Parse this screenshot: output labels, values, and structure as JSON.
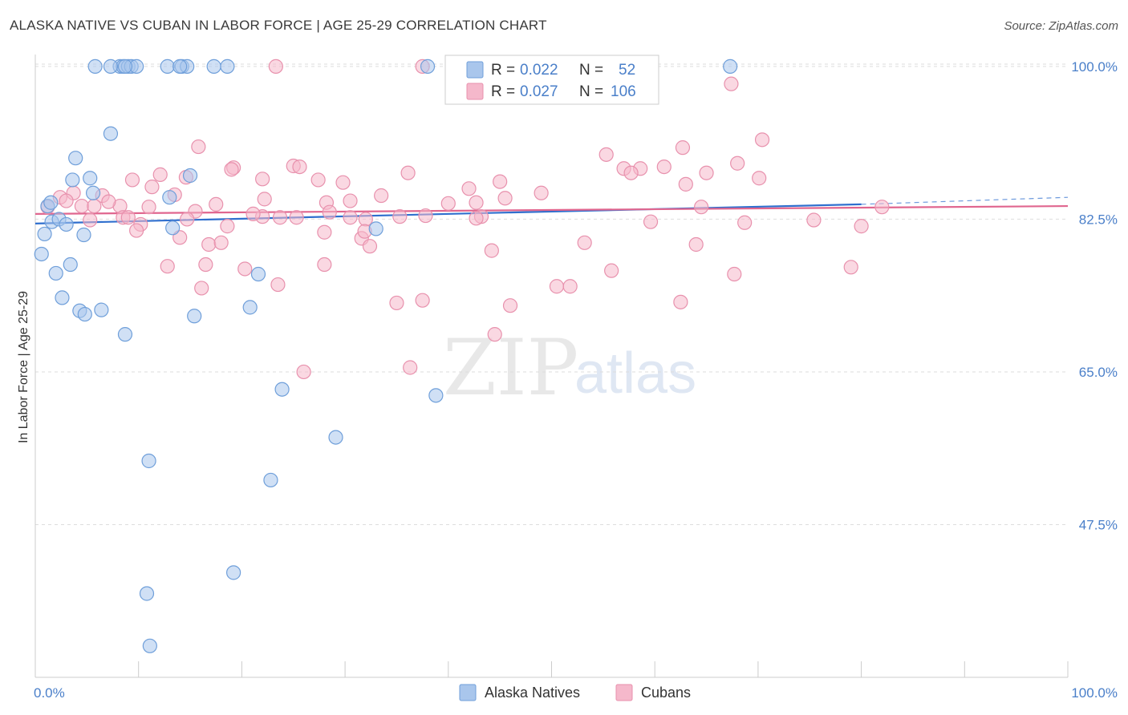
{
  "title": "ALASKA NATIVE VS CUBAN IN LABOR FORCE | AGE 25-29 CORRELATION CHART",
  "source": "Source: ZipAtlas.com",
  "watermark": {
    "zip": "ZIP",
    "atlas": "atlas"
  },
  "colors": {
    "blue_fill": "#a9c6ec",
    "blue_stroke": "#6f9fda",
    "blue_line": "#2f6fce",
    "pink_fill": "#f5b8cb",
    "pink_stroke": "#e891ad",
    "pink_line": "#e0668f",
    "grid": "#dddddd",
    "tick_text": "#4a7fc9"
  },
  "chart_data": {
    "type": "scatter",
    "title": "ALASKA NATIVE VS CUBAN IN LABOR FORCE | AGE 25-29 CORRELATION CHART",
    "xlabel": "",
    "ylabel": "In Labor Force | Age 25-29",
    "xlim": [
      0,
      100
    ],
    "ylim": [
      30,
      101
    ],
    "x_tick_labels": [
      "0.0%",
      "100.0%"
    ],
    "y_ticks": [
      47.5,
      65.0,
      82.5,
      100.0
    ],
    "y_tick_labels": [
      "47.5%",
      "65.0%",
      "82.5%",
      "100.0%"
    ],
    "legend": [
      {
        "r_label": "R =",
        "r_value": "0.022",
        "n_label": "N =",
        "n_value": "52"
      },
      {
        "r_label": "R =",
        "r_value": "0.027",
        "n_label": "N =",
        "n_value": "106"
      }
    ],
    "series": [
      {
        "name": "Alaska Natives",
        "trend": {
          "x0": 0,
          "y0": 82.0,
          "x1": 80,
          "y1": 84.2,
          "dash_x1": 100,
          "dash_y1": 85.0
        },
        "points": [
          [
            5.8,
            100
          ],
          [
            8.2,
            100
          ],
          [
            8.5,
            100
          ],
          [
            9.0,
            100
          ],
          [
            9.3,
            100
          ],
          [
            7.3,
            100
          ],
          [
            9.8,
            100
          ],
          [
            12.8,
            100
          ],
          [
            14.2,
            100
          ],
          [
            14.7,
            100
          ],
          [
            17.3,
            100
          ],
          [
            18.6,
            100
          ],
          [
            8.7,
            100
          ],
          [
            14.0,
            100
          ],
          [
            38.0,
            100
          ],
          [
            67.3,
            100
          ],
          [
            7.3,
            92.3
          ],
          [
            3.9,
            89.5
          ],
          [
            3.6,
            87.0
          ],
          [
            5.3,
            87.2
          ],
          [
            15.0,
            87.5
          ],
          [
            5.6,
            85.5
          ],
          [
            13.0,
            85.0
          ],
          [
            1.2,
            84.0
          ],
          [
            1.6,
            82.2
          ],
          [
            2.3,
            82.5
          ],
          [
            3.0,
            81.9
          ],
          [
            0.9,
            80.8
          ],
          [
            4.7,
            80.7
          ],
          [
            13.3,
            81.5
          ],
          [
            33.0,
            81.4
          ],
          [
            0.6,
            78.5
          ],
          [
            3.4,
            77.3
          ],
          [
            2.0,
            76.3
          ],
          [
            21.6,
            76.2
          ],
          [
            2.6,
            73.5
          ],
          [
            4.3,
            72.0
          ],
          [
            6.4,
            72.1
          ],
          [
            20.8,
            72.4
          ],
          [
            4.8,
            71.6
          ],
          [
            15.4,
            71.4
          ],
          [
            8.7,
            69.3
          ],
          [
            23.9,
            63.0
          ],
          [
            38.8,
            62.3
          ],
          [
            29.1,
            57.5
          ],
          [
            11.0,
            54.8
          ],
          [
            22.8,
            52.6
          ],
          [
            19.2,
            42.0
          ],
          [
            10.8,
            39.6
          ],
          [
            11.1,
            33.6
          ],
          [
            1.5,
            84.4
          ]
        ]
      },
      {
        "name": "Cubans",
        "trend": {
          "x0": 0,
          "y0": 83.1,
          "x1": 100,
          "y1": 84.0
        },
        "points": [
          [
            23.3,
            100
          ],
          [
            37.5,
            100
          ],
          [
            67.4,
            98.0
          ],
          [
            70.4,
            91.6
          ],
          [
            15.8,
            90.8
          ],
          [
            62.7,
            90.7
          ],
          [
            55.3,
            89.9
          ],
          [
            25.0,
            88.6
          ],
          [
            25.6,
            88.5
          ],
          [
            19.2,
            88.4
          ],
          [
            19.0,
            88.2
          ],
          [
            57.0,
            88.3
          ],
          [
            58.6,
            88.3
          ],
          [
            60.9,
            88.5
          ],
          [
            68.0,
            88.9
          ],
          [
            36.1,
            87.8
          ],
          [
            57.7,
            87.8
          ],
          [
            65.0,
            87.8
          ],
          [
            9.4,
            87.0
          ],
          [
            12.1,
            87.6
          ],
          [
            14.6,
            87.3
          ],
          [
            22.0,
            87.1
          ],
          [
            27.4,
            87.0
          ],
          [
            29.8,
            86.7
          ],
          [
            45.0,
            86.8
          ],
          [
            63.0,
            86.5
          ],
          [
            70.1,
            87.2
          ],
          [
            11.3,
            86.2
          ],
          [
            42.0,
            86.0
          ],
          [
            2.4,
            85.0
          ],
          [
            3.7,
            85.5
          ],
          [
            6.5,
            85.2
          ],
          [
            8.2,
            84.0
          ],
          [
            13.5,
            85.3
          ],
          [
            22.2,
            84.8
          ],
          [
            28.2,
            84.4
          ],
          [
            30.5,
            84.6
          ],
          [
            33.5,
            85.2
          ],
          [
            40.0,
            84.3
          ],
          [
            42.7,
            84.4
          ],
          [
            45.5,
            84.9
          ],
          [
            49.0,
            85.5
          ],
          [
            1.2,
            83.9
          ],
          [
            3.0,
            84.6
          ],
          [
            4.5,
            84.0
          ],
          [
            5.7,
            84.0
          ],
          [
            7.1,
            84.5
          ],
          [
            11.0,
            83.9
          ],
          [
            15.5,
            83.4
          ],
          [
            17.5,
            84.2
          ],
          [
            22.0,
            82.8
          ],
          [
            21.1,
            83.1
          ],
          [
            32.0,
            82.5
          ],
          [
            35.3,
            82.8
          ],
          [
            37.8,
            82.9
          ],
          [
            43.2,
            82.8
          ],
          [
            64.5,
            83.9
          ],
          [
            82.0,
            83.9
          ],
          [
            8.5,
            82.7
          ],
          [
            9.0,
            82.7
          ],
          [
            10.2,
            81.9
          ],
          [
            5.3,
            82.4
          ],
          [
            14.7,
            82.5
          ],
          [
            23.7,
            82.7
          ],
          [
            25.3,
            82.7
          ],
          [
            28.5,
            83.3
          ],
          [
            42.7,
            82.6
          ],
          [
            59.6,
            82.2
          ],
          [
            68.7,
            82.1
          ],
          [
            75.4,
            82.4
          ],
          [
            80.0,
            81.7
          ],
          [
            9.8,
            81.2
          ],
          [
            14.0,
            80.4
          ],
          [
            18.6,
            81.7
          ],
          [
            28.0,
            81.0
          ],
          [
            31.6,
            80.3
          ],
          [
            31.9,
            81.1
          ],
          [
            16.8,
            79.6
          ],
          [
            18.0,
            79.8
          ],
          [
            32.4,
            79.4
          ],
          [
            44.2,
            78.9
          ],
          [
            53.2,
            79.8
          ],
          [
            64.0,
            79.6
          ],
          [
            12.8,
            77.1
          ],
          [
            16.5,
            77.3
          ],
          [
            20.3,
            76.8
          ],
          [
            28.0,
            77.3
          ],
          [
            55.8,
            76.6
          ],
          [
            67.7,
            76.2
          ],
          [
            79.0,
            77.0
          ],
          [
            23.5,
            75.0
          ],
          [
            16.1,
            74.6
          ],
          [
            50.5,
            74.8
          ],
          [
            51.8,
            74.8
          ],
          [
            35.0,
            72.9
          ],
          [
            37.5,
            73.2
          ],
          [
            46.0,
            72.6
          ],
          [
            62.5,
            73.0
          ],
          [
            44.5,
            69.3
          ],
          [
            26.0,
            65.0
          ],
          [
            36.3,
            65.5
          ],
          [
            30.5,
            82.7
          ]
        ]
      }
    ]
  },
  "bottom_legend": [
    {
      "label": "Alaska Natives"
    },
    {
      "label": "Cubans"
    }
  ]
}
